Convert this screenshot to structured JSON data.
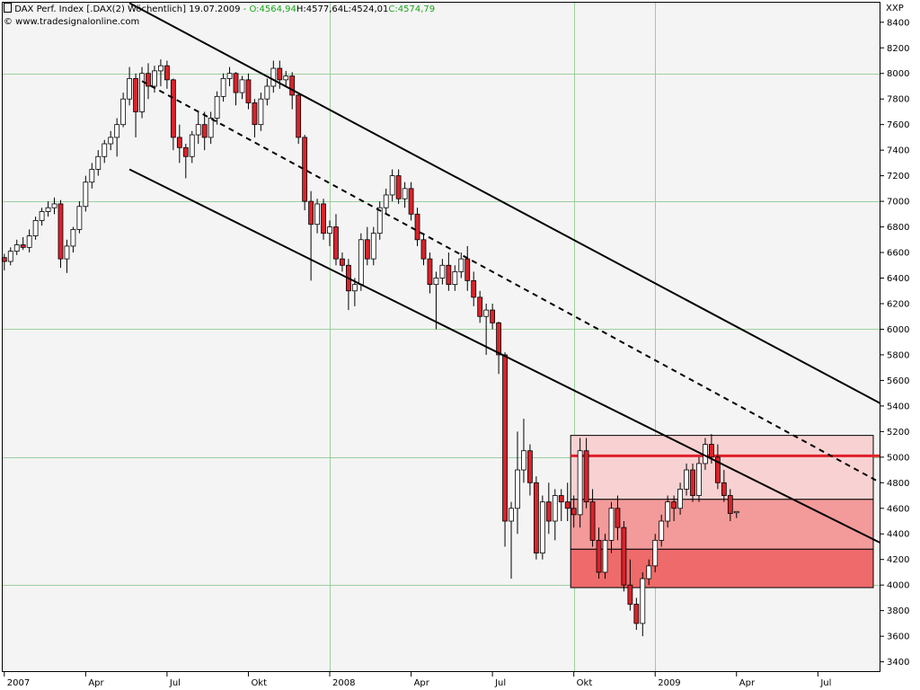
{
  "header": {
    "title": "DAX Perf. Index [.DAX(2)",
    "interval": "Wöchentlich]",
    "date": "19.07.2009",
    "o_label": "O:4564,94",
    "h_label": "H:4577,64",
    "l_label": "L:4524,01",
    "c_label": "C:4574,79",
    "copyright": "© www.tradesignalonline.com",
    "exchange": "XXP"
  },
  "colors": {
    "up": "#ffffff",
    "down": "#d9232b",
    "ohlc_label": "#1aa51a",
    "zone_light": "#f8d2d2",
    "zone_mid": "#f39a9a",
    "zone_dark": "#ef6a6a",
    "resistance": "#e0202a"
  },
  "chart_data": {
    "type": "candlestick",
    "y_axis": {
      "ticks": [
        3400,
        3600,
        3800,
        4000,
        4200,
        4400,
        4600,
        4800,
        5000,
        5200,
        5400,
        5600,
        5800,
        6000,
        6200,
        6400,
        6600,
        6800,
        7000,
        7200,
        7400,
        7600,
        7800,
        8000,
        8200,
        8400
      ],
      "major_gridlines": [
        4000,
        5000,
        6000,
        7000,
        8000
      ],
      "range": [
        3320,
        8560
      ]
    },
    "x_axis": {
      "labels": [
        {
          "text": "2007",
          "w": 0
        },
        {
          "text": "Apr",
          "w": 13
        },
        {
          "text": "Jul",
          "w": 26
        },
        {
          "text": "Okt",
          "w": 39
        },
        {
          "text": "2008",
          "w": 52
        },
        {
          "text": "Apr",
          "w": 65
        },
        {
          "text": "Jul",
          "w": 78
        },
        {
          "text": "Okt",
          "w": 91
        },
        {
          "text": "2009",
          "w": 104
        },
        {
          "text": "Apr",
          "w": 117
        },
        {
          "text": "Jul",
          "w": 130
        }
      ],
      "major_gridlines_w": [
        52,
        91,
        104
      ],
      "range_w": [
        -0.4,
        140
      ]
    },
    "candles": [
      [
        6560,
        6590,
        6460,
        6530
      ],
      [
        6530,
        6640,
        6500,
        6610
      ],
      [
        6610,
        6700,
        6580,
        6660
      ],
      [
        6660,
        6720,
        6620,
        6640
      ],
      [
        6640,
        6780,
        6600,
        6730
      ],
      [
        6730,
        6880,
        6700,
        6850
      ],
      [
        6850,
        6950,
        6810,
        6920
      ],
      [
        6920,
        7000,
        6880,
        6950
      ],
      [
        6950,
        7030,
        6900,
        6980
      ],
      [
        6980,
        7010,
        6480,
        6550
      ],
      [
        6550,
        6700,
        6440,
        6650
      ],
      [
        6650,
        6800,
        6600,
        6780
      ],
      [
        6780,
        7000,
        6750,
        6960
      ],
      [
        6960,
        7200,
        6920,
        7150
      ],
      [
        7150,
        7300,
        7100,
        7250
      ],
      [
        7250,
        7400,
        7200,
        7350
      ],
      [
        7350,
        7480,
        7300,
        7450
      ],
      [
        7450,
        7550,
        7400,
        7500
      ],
      [
        7500,
        7650,
        7350,
        7600
      ],
      [
        7600,
        7850,
        7580,
        7800
      ],
      [
        7800,
        8050,
        7750,
        7960
      ],
      [
        7960,
        8000,
        7500,
        7700
      ],
      [
        7700,
        8050,
        7650,
        8000
      ],
      [
        8000,
        8080,
        7800,
        7900
      ],
      [
        7900,
        8060,
        7850,
        8020
      ],
      [
        8020,
        8110,
        7900,
        8060
      ],
      [
        8060,
        8100,
        7880,
        7950
      ],
      [
        7950,
        7960,
        7400,
        7500
      ],
      [
        7500,
        7600,
        7300,
        7420
      ],
      [
        7420,
        7450,
        7180,
        7350
      ],
      [
        7350,
        7550,
        7300,
        7520
      ],
      [
        7520,
        7700,
        7450,
        7600
      ],
      [
        7600,
        7700,
        7400,
        7500
      ],
      [
        7500,
        7700,
        7450,
        7650
      ],
      [
        7650,
        7860,
        7600,
        7820
      ],
      [
        7820,
        8000,
        7780,
        7960
      ],
      [
        7960,
        8050,
        7900,
        8000
      ],
      [
        8000,
        8010,
        7750,
        7850
      ],
      [
        7850,
        7980,
        7800,
        7950
      ],
      [
        7950,
        8000,
        7720,
        7770
      ],
      [
        7770,
        7800,
        7500,
        7600
      ],
      [
        7600,
        7850,
        7550,
        7800
      ],
      [
        7800,
        7960,
        7750,
        7900
      ],
      [
        7900,
        8100,
        7850,
        8040
      ],
      [
        8040,
        8100,
        7880,
        7950
      ],
      [
        7950,
        8020,
        7900,
        7980
      ],
      [
        7980,
        8010,
        7720,
        7830
      ],
      [
        7830,
        7850,
        7450,
        7500
      ],
      [
        7500,
        7520,
        6930,
        7000
      ],
      [
        7000,
        7080,
        6380,
        6820
      ],
      [
        6820,
        7020,
        6750,
        6980
      ],
      [
        6980,
        7020,
        6700,
        6750
      ],
      [
        6750,
        6850,
        6650,
        6800
      ],
      [
        6800,
        6900,
        6500,
        6550
      ],
      [
        6550,
        6600,
        6450,
        6500
      ],
      [
        6500,
        6550,
        6150,
        6300
      ],
      [
        6300,
        6400,
        6180,
        6350
      ],
      [
        6350,
        6750,
        6300,
        6700
      ],
      [
        6700,
        6800,
        6500,
        6550
      ],
      [
        6550,
        6800,
        6500,
        6750
      ],
      [
        6750,
        7000,
        6700,
        6950
      ],
      [
        6950,
        7100,
        6900,
        7050
      ],
      [
        7050,
        7250,
        7000,
        7200
      ],
      [
        7200,
        7250,
        6980,
        7020
      ],
      [
        7020,
        7150,
        6950,
        7100
      ],
      [
        7100,
        7150,
        6850,
        6900
      ],
      [
        6900,
        6950,
        6650,
        6700
      ],
      [
        6700,
        6750,
        6500,
        6550
      ],
      [
        6550,
        6600,
        6280,
        6350
      ],
      [
        6350,
        6450,
        6000,
        6400
      ],
      [
        6400,
        6550,
        6350,
        6500
      ],
      [
        6500,
        6600,
        6300,
        6350
      ],
      [
        6350,
        6500,
        6300,
        6450
      ],
      [
        6450,
        6600,
        6400,
        6550
      ],
      [
        6550,
        6650,
        6300,
        6380
      ],
      [
        6380,
        6450,
        6180,
        6250
      ],
      [
        6250,
        6300,
        6050,
        6100
      ],
      [
        6100,
        6200,
        5800,
        6150
      ],
      [
        6150,
        6200,
        6000,
        6050
      ],
      [
        6050,
        6060,
        5650,
        5800
      ],
      [
        5800,
        5820,
        4300,
        4500
      ],
      [
        4500,
        4650,
        4050,
        4600
      ],
      [
        4600,
        5200,
        4400,
        4900
      ],
      [
        4900,
        5300,
        4800,
        5050
      ],
      [
        5050,
        5100,
        4700,
        4800
      ],
      [
        4800,
        4850,
        4200,
        4250
      ],
      [
        4250,
        4700,
        4200,
        4650
      ],
      [
        4650,
        4800,
        4400,
        4500
      ],
      [
        4500,
        4750,
        4350,
        4700
      ],
      [
        4700,
        4750,
        4500,
        4650
      ],
      [
        4650,
        4800,
        4500,
        4600
      ],
      [
        4600,
        4700,
        4450,
        4550
      ],
      [
        4550,
        5150,
        4450,
        5050
      ],
      [
        5050,
        5150,
        4600,
        4650
      ],
      [
        4650,
        4750,
        4300,
        4350
      ],
      [
        4350,
        4450,
        4050,
        4100
      ],
      [
        4100,
        4400,
        4050,
        4350
      ],
      [
        4350,
        4650,
        4250,
        4600
      ],
      [
        4600,
        4700,
        4350,
        4450
      ],
      [
        4450,
        4500,
        3950,
        4000
      ],
      [
        4000,
        4200,
        3800,
        3850
      ],
      [
        3850,
        3900,
        3650,
        3700
      ],
      [
        3700,
        4100,
        3600,
        4050
      ],
      [
        4050,
        4200,
        4000,
        4150
      ],
      [
        4150,
        4400,
        4100,
        4350
      ],
      [
        4350,
        4550,
        4300,
        4500
      ],
      [
        4500,
        4700,
        4450,
        4650
      ],
      [
        4650,
        4700,
        4500,
        4600
      ],
      [
        4600,
        4800,
        4550,
        4750
      ],
      [
        4750,
        4950,
        4700,
        4900
      ],
      [
        4900,
        4950,
        4650,
        4700
      ],
      [
        4700,
        5000,
        4650,
        4950
      ],
      [
        4950,
        5150,
        4900,
        5100
      ],
      [
        5100,
        5180,
        4950,
        5000
      ],
      [
        5000,
        5100,
        4750,
        4800
      ],
      [
        4800,
        4900,
        4650,
        4700
      ],
      [
        4700,
        4750,
        4500,
        4560
      ],
      [
        4565,
        4578,
        4524,
        4575
      ]
    ],
    "trendlines": [
      {
        "name": "upper-channel",
        "w1": 20,
        "v1": 8550,
        "w2": 140,
        "v2": 5420,
        "dash": false
      },
      {
        "name": "middle-channel",
        "w1": 22,
        "v1": 7940,
        "w2": 140,
        "v2": 4800,
        "dash": true
      },
      {
        "name": "lower-channel",
        "w1": 20,
        "v1": 7250,
        "w2": 140,
        "v2": 4330,
        "dash": false
      }
    ],
    "zones": [
      {
        "name": "zone-upper",
        "v_top": 5170,
        "v_bottom": 4670,
        "color": "#f8d2d2"
      },
      {
        "name": "zone-middle",
        "v_top": 4670,
        "v_bottom": 4280,
        "color": "#f39a9a"
      },
      {
        "name": "zone-lower",
        "v_top": 4280,
        "v_bottom": 3980,
        "color": "#ef6a6a"
      }
    ],
    "zone_w_range": [
      90.5,
      140
    ],
    "resistance_value": 5010
  }
}
